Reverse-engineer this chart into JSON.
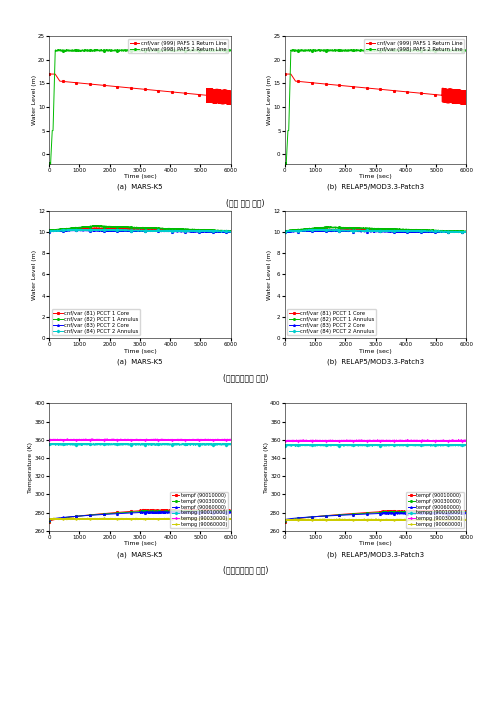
{
  "row_labels": [
    "(회수 유로 수위)",
    "(응축냉각탱크 수위)",
    "(응축냉각탱크 온도)"
  ],
  "col_labels_a": "(a)  MARS-K5",
  "col_labels_b": "(b)  RELAP5/MOD3.3-Patch3",
  "xlabel": "Time (sec)",
  "row0": {
    "ylabel": "Water Level (m)",
    "ylim": [
      -2,
      25
    ],
    "yticks": [
      0,
      5,
      10,
      15,
      20,
      25
    ],
    "legend": [
      "cnf/var (999) PAFS 1 Return Line",
      "cnf/var (998) PAFS 2 Return Line"
    ],
    "colors": [
      "#ff0000",
      "#00bb00"
    ]
  },
  "row1": {
    "ylabel": "Water Level (m)",
    "ylim": [
      0,
      12
    ],
    "yticks": [
      0,
      2,
      4,
      6,
      8,
      10,
      12
    ],
    "legend": [
      "cnf/var (81) PCCT 1 Core",
      "cnf/var (82) PCCT 1 Annulus",
      "cnf/var (83) PCCT 2 Core",
      "cnf/var (84) PCCT 2 Annulus"
    ],
    "colors": [
      "#ff0000",
      "#00bb00",
      "#0000ff",
      "#00cccc"
    ]
  },
  "row2": {
    "ylabel": "Temperature (K)",
    "ylim": [
      260,
      400
    ],
    "yticks": [
      260,
      280,
      300,
      320,
      340,
      360,
      380,
      400
    ],
    "legend": [
      "tempf (90010000)",
      "tempf (90030000)",
      "tempf (90060000)",
      "tempg (90010000)",
      "tempg (90030000)",
      "tempg (90060000)"
    ],
    "colors": [
      "#ff0000",
      "#00bb00",
      "#0000ff",
      "#00cccc",
      "#ff00ff",
      "#cccc00"
    ]
  }
}
